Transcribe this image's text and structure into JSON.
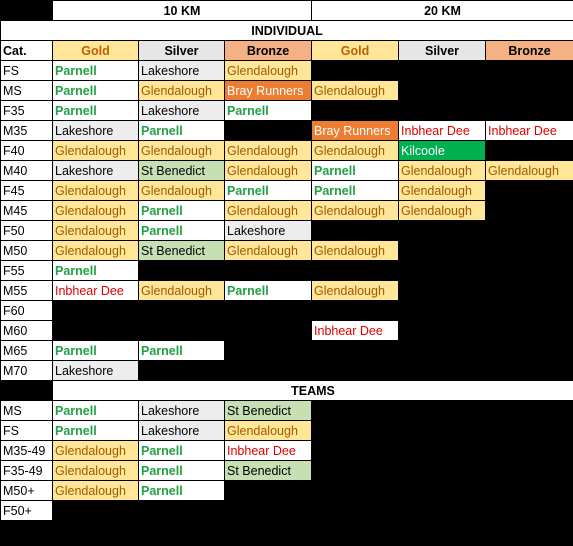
{
  "header": {
    "dist_10": "10 KM",
    "dist_20": "20 KM",
    "individual": "INDIVIDUAL",
    "teams": "TEAMS",
    "cat": "Cat.",
    "gold": "Gold",
    "silver": "Silver",
    "bronze": "Bronze"
  },
  "individual": [
    {
      "cat": "FS",
      "c": [
        "Parnell",
        "Lakeshore",
        "Glendalough",
        "",
        "",
        ""
      ]
    },
    {
      "cat": "MS",
      "c": [
        "Parnell",
        "Glendalough",
        "Bray Runners",
        "Glendalough",
        "",
        ""
      ]
    },
    {
      "cat": "F35",
      "c": [
        "Parnell",
        "Lakeshore",
        "Parnell",
        "",
        "",
        ""
      ]
    },
    {
      "cat": "M35",
      "c": [
        "Lakeshore",
        "Parnell",
        "",
        "Bray Runners",
        "Inbhear Dee",
        "Inbhear Dee"
      ]
    },
    {
      "cat": "F40",
      "c": [
        "Glendalough",
        "Glendalough",
        "Glendalough",
        "Glendalough",
        "Kilcoole",
        ""
      ]
    },
    {
      "cat": "M40",
      "c": [
        "Lakeshore",
        "St Benedict",
        "Glendalough",
        "Parnell",
        "Glendalough",
        "Glendalough"
      ]
    },
    {
      "cat": "F45",
      "c": [
        "Glendalough",
        "Glendalough",
        "Parnell",
        "Parnell",
        "Glendalough",
        ""
      ]
    },
    {
      "cat": "M45",
      "c": [
        "Glendalough",
        "Parnell",
        "Glendalough",
        "Glendalough",
        "Glendalough",
        ""
      ]
    },
    {
      "cat": "F50",
      "c": [
        "Glendalough",
        "Parnell",
        "Lakeshore",
        "",
        "",
        ""
      ]
    },
    {
      "cat": "M50",
      "c": [
        "Glendalough",
        "St Benedict",
        "Glendalough",
        "Glendalough",
        "",
        ""
      ]
    },
    {
      "cat": "F55",
      "c": [
        "Parnell",
        "",
        "",
        "",
        "",
        ""
      ]
    },
    {
      "cat": "M55",
      "c": [
        "Inbhear Dee",
        "Glendalough",
        "Parnell",
        "Glendalough",
        "",
        ""
      ]
    },
    {
      "cat": "F60",
      "c": [
        "",
        "",
        "",
        "",
        "",
        ""
      ]
    },
    {
      "cat": "M60",
      "c": [
        "",
        "",
        "",
        "Inbhear Dee",
        "",
        ""
      ]
    },
    {
      "cat": "M65",
      "c": [
        "Parnell",
        "Parnell",
        "",
        "",
        "",
        ""
      ]
    },
    {
      "cat": "M70",
      "c": [
        "Lakeshore",
        "",
        "",
        "",
        "",
        ""
      ]
    }
  ],
  "teams": [
    {
      "cat": "MS",
      "c": [
        "Parnell",
        "Lakeshore",
        "St Benedict",
        "",
        "",
        ""
      ]
    },
    {
      "cat": "FS",
      "c": [
        "Parnell",
        "Lakeshore",
        "Glendalough",
        "",
        "",
        ""
      ]
    },
    {
      "cat": "M35-49",
      "c": [
        "Glendalough",
        "Parnell",
        "Inbhear Dee",
        "",
        "",
        ""
      ]
    },
    {
      "cat": "F35-49",
      "c": [
        "Glendalough",
        "Parnell",
        "St Benedict",
        "",
        "",
        ""
      ]
    },
    {
      "cat": "M50+",
      "c": [
        "Glendalough",
        "Parnell",
        "",
        "",
        "",
        ""
      ]
    },
    {
      "cat": "F50+",
      "c": [
        "",
        "",
        "",
        "",
        "",
        ""
      ]
    }
  ]
}
